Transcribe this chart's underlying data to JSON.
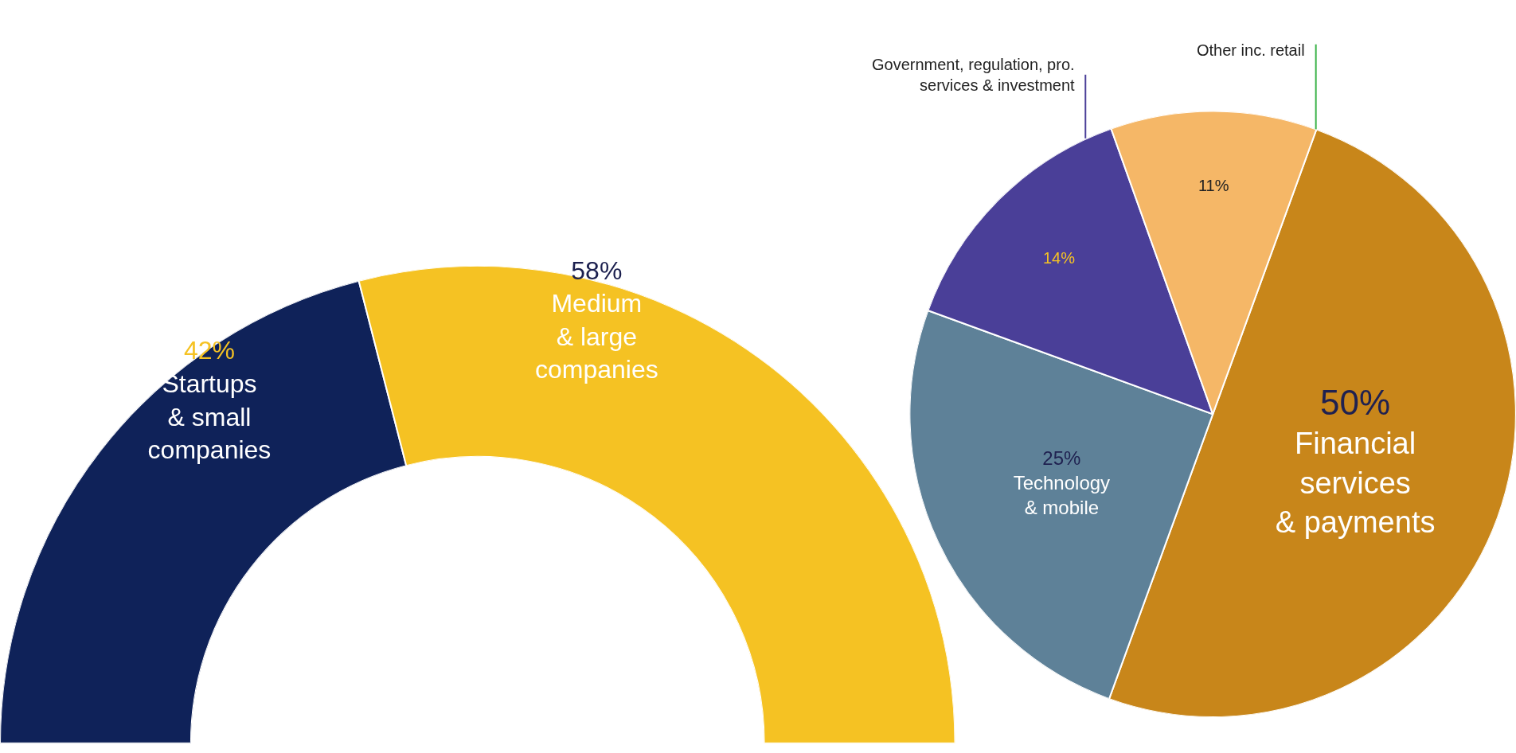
{
  "chart_data": [
    {
      "type": "donut",
      "categories": [
        "Startups & small companies",
        "Medium & large companies"
      ],
      "values": [
        42,
        58
      ],
      "colors": [
        "#0f2259",
        "#f5c223"
      ],
      "value_labels": [
        "42%",
        "58%"
      ]
    },
    {
      "type": "pie",
      "categories": [
        "Financial services & payments",
        "Technology & mobile",
        "Government, regulation, pro. services & investment",
        "Other inc. retail"
      ],
      "values": [
        50,
        25,
        14,
        11
      ],
      "colors": [
        "#c8861a",
        "#5e8198",
        "#4a3f98",
        "#f5b767"
      ],
      "value_labels": [
        "50%",
        "25%",
        "14%",
        "11%"
      ]
    }
  ]
}
